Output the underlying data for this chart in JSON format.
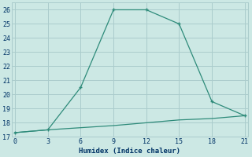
{
  "x": [
    0,
    3,
    6,
    9,
    12,
    15,
    18,
    21
  ],
  "y_upper": [
    17.3,
    17.5,
    20.5,
    26.0,
    26.0,
    25.0,
    19.5,
    18.5
  ],
  "y_lower": [
    17.3,
    17.5,
    17.65,
    17.8,
    18.0,
    18.2,
    18.3,
    18.5
  ],
  "line_color": "#2e8b7a",
  "bg_color": "#cce8e4",
  "grid_color": "#aacccc",
  "xlabel": "Humidex (Indice chaleur)",
  "ylim": [
    17,
    26.5
  ],
  "xlim": [
    -0.3,
    21.3
  ],
  "xticks": [
    0,
    3,
    6,
    9,
    12,
    15,
    18,
    21
  ],
  "yticks": [
    17,
    18,
    19,
    20,
    21,
    22,
    23,
    24,
    25,
    26
  ],
  "font_color": "#003366",
  "markersize": 3.5
}
